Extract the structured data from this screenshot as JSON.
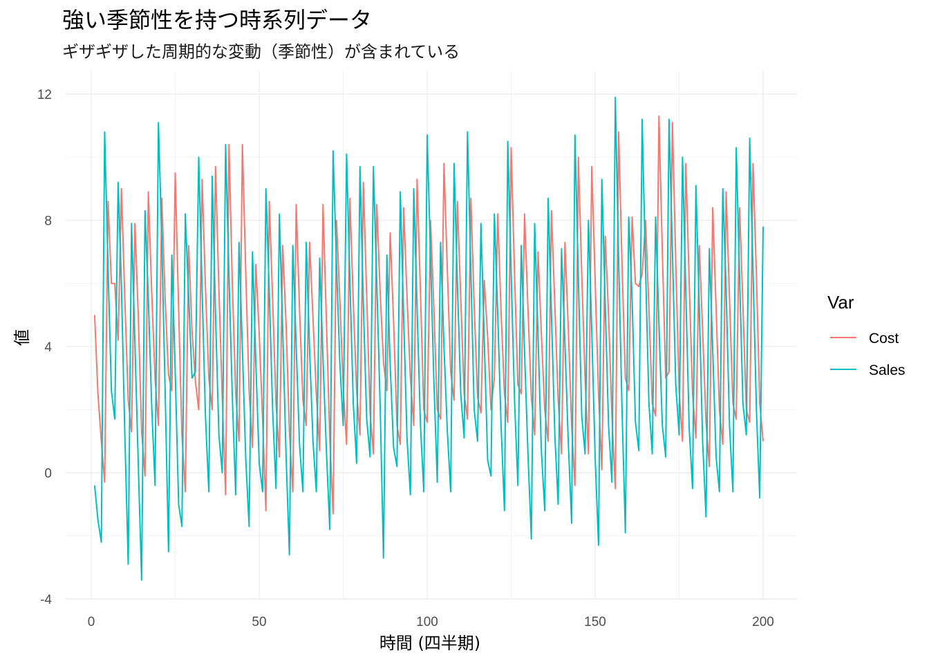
{
  "chart_data": {
    "type": "line",
    "title": "強い季節性を持つ時系列データ",
    "subtitle": "ギザギザした周期的な変動（季節性）が含まれている",
    "xlabel": "時間 (四半期)",
    "ylabel": "値",
    "xlim": [
      0,
      200
    ],
    "ylim": [
      -4,
      12
    ],
    "x_ticks": [
      0,
      50,
      100,
      150,
      200
    ],
    "y_ticks": [
      -4,
      0,
      4,
      8,
      12
    ],
    "x_start": 1,
    "grid": true,
    "legend": {
      "title": "Var",
      "placement": "right"
    },
    "series": [
      {
        "name": "Cost",
        "color": "#F8766D",
        "values": [
          5.0,
          2.5,
          1.0,
          -0.3,
          8.6,
          6.0,
          6.0,
          4.2,
          9.0,
          5.5,
          2.3,
          1.3,
          7.9,
          5.0,
          1.3,
          -0.1,
          8.9,
          5.7,
          3.0,
          1.5,
          8.7,
          5.5,
          3.1,
          2.6,
          9.5,
          5.2,
          1.2,
          -0.6,
          7.2,
          4.5,
          2.9,
          2.0,
          9.3,
          5.9,
          3.0,
          2.0,
          9.7,
          5.8,
          2.4,
          -0.7,
          10.4,
          6.0,
          2.5,
          1.0,
          10.4,
          6.3,
          2.6,
          0.8,
          6.6,
          4.4,
          1.7,
          -1.2,
          8.6,
          5.5,
          2.2,
          0.5,
          7.2,
          4.7,
          1.3,
          -0.6,
          8.5,
          5.2,
          2.3,
          1.5,
          7.3,
          4.9,
          2.5,
          0.7,
          8.5,
          4.8,
          1.1,
          -1.3,
          8.0,
          5.5,
          2.7,
          0.9,
          8.7,
          5.4,
          2.6,
          1.2,
          9.2,
          5.6,
          1.9,
          0.6,
          8.5,
          5.7,
          3.5,
          2.6,
          7.6,
          4.8,
          1.5,
          0.9,
          8.4,
          5.6,
          3.0,
          1.5,
          9.3,
          5.7,
          2.0,
          1.6,
          8.0,
          5.2,
          2.0,
          1.7,
          9.8,
          6.4,
          3.2,
          2.3,
          8.6,
          5.5,
          2.5,
          1.7,
          8.7,
          5.3,
          2.4,
          1.9,
          6.1,
          4.3,
          2.0,
          3.0,
          8.2,
          5.1,
          2.5,
          1.6,
          10.3,
          6.3,
          2.8,
          2.5,
          8.2,
          5.2,
          2.4,
          1.2,
          7.0,
          4.4,
          2.0,
          1.0,
          8.3,
          5.3,
          2.3,
          0.6,
          7.3,
          4.6,
          1.5,
          -0.4,
          10.0,
          6.3,
          3.0,
          0.6,
          9.7,
          6.1,
          2.5,
          0.1,
          7.5,
          5.0,
          1.8,
          -0.5,
          10.8,
          6.6,
          3.0,
          2.6,
          8.1,
          6.0,
          5.9,
          6.3,
          8.0,
          5.2,
          2.2,
          1.8,
          11.3,
          7.0,
          3.0,
          3.2,
          11.1,
          6.7,
          2.6,
          1.0,
          9.8,
          6.0,
          2.5,
          1.1,
          7.2,
          4.5,
          1.6,
          0.2,
          8.4,
          5.2,
          2.0,
          0.9,
          8.9,
          5.5,
          2.2,
          1.7,
          8.4,
          5.3,
          2.0,
          1.6,
          9.8,
          6.3,
          2.2,
          1.0
        ]
      },
      {
        "name": "Sales",
        "color": "#00BFC4",
        "values": [
          -0.4,
          -1.5,
          -2.2,
          10.8,
          6.5,
          2.6,
          1.7,
          9.2,
          5.9,
          1.2,
          -2.9,
          7.9,
          4.1,
          0.3,
          -3.4,
          8.3,
          5.5,
          2.1,
          -0.4,
          11.1,
          7.3,
          2.6,
          -2.5,
          6.9,
          3.2,
          -1.0,
          -1.7,
          8.2,
          5.6,
          3.0,
          3.2,
          10.0,
          5.8,
          1.8,
          -0.6,
          9.4,
          5.0,
          1.2,
          0.0,
          10.4,
          6.2,
          2.4,
          -0.7,
          7.3,
          3.9,
          0.4,
          -1.7,
          7.0,
          3.5,
          0.3,
          -0.6,
          9.0,
          5.7,
          2.0,
          -0.5,
          8.2,
          4.5,
          0.5,
          -2.6,
          7.2,
          4.0,
          0.9,
          -0.6,
          7.3,
          3.9,
          1.0,
          -0.6,
          6.8,
          3.6,
          0.7,
          -1.8,
          10.2,
          6.6,
          3.5,
          1.5,
          10.1,
          6.1,
          2.2,
          0.3,
          9.7,
          5.3,
          1.7,
          0.5,
          9.7,
          6.0,
          2.1,
          -2.7,
          6.9,
          3.4,
          0.8,
          0.2,
          8.9,
          4.9,
          1.1,
          -0.7,
          9.0,
          5.2,
          1.5,
          -0.6,
          10.7,
          6.8,
          2.9,
          -0.3,
          7.3,
          4.0,
          1.3,
          -0.6,
          9.8,
          6.0,
          2.5,
          1.1,
          10.8,
          6.4,
          2.0,
          1.0,
          7.9,
          4.2,
          0.4,
          -0.1,
          8.2,
          5.0,
          1.5,
          -1.2,
          10.5,
          6.3,
          2.3,
          -0.4,
          7.2,
          3.8,
          0.6,
          -2.1,
          7.9,
          4.3,
          0.7,
          -1.2,
          8.7,
          5.0,
          1.2,
          -1.0,
          7.1,
          4.1,
          1.0,
          -1.6,
          10.7,
          6.2,
          1.8,
          0.6,
          8.0,
          4.5,
          0.5,
          -2.3,
          9.3,
          5.3,
          1.5,
          -0.3,
          11.9,
          6.7,
          2.0,
          -1.9,
          8.1,
          5.5,
          1.6,
          0.7,
          11.2,
          6.5,
          2.2,
          0.6,
          8.1,
          4.7,
          1.5,
          0.5,
          11.2,
          7.0,
          2.8,
          1.2,
          10.0,
          5.7,
          1.4,
          -0.5,
          9.1,
          5.2,
          1.0,
          -1.4,
          7.1,
          3.9,
          0.5,
          -0.6,
          9.0,
          5.8,
          1.5,
          -0.6,
          10.3,
          6.2,
          2.2,
          1.2,
          10.6,
          6.4,
          2.0,
          -0.8,
          7.8
        ]
      }
    ]
  }
}
